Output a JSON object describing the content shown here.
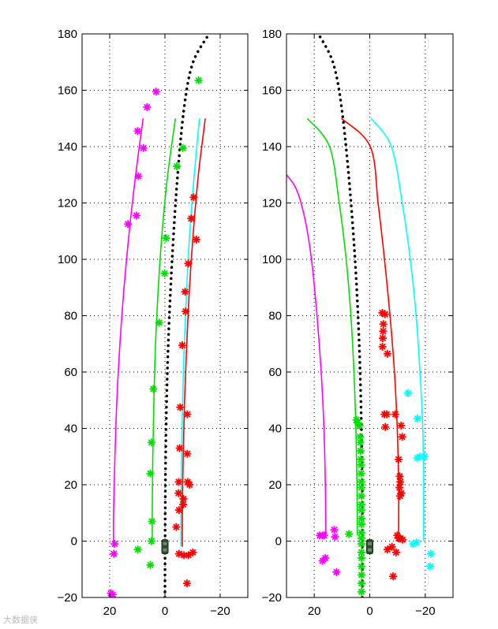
{
  "watermark": "大数据侠",
  "chart_data": [
    {
      "type": "line",
      "title": "",
      "xlabel": "",
      "ylabel": "",
      "xlim": [
        30,
        -30
      ],
      "ylim": [
        -20,
        180
      ],
      "xticks": [
        20,
        0,
        -20
      ],
      "yticks": [
        -20,
        0,
        20,
        40,
        60,
        80,
        100,
        120,
        140,
        160,
        180
      ],
      "xtick_labels": [
        "20",
        "0",
        "−20"
      ],
      "ytick_labels": [
        "−20",
        "0",
        "20",
        "40",
        "60",
        "80",
        "100",
        "120",
        "140",
        "160",
        "180"
      ],
      "grid": true,
      "ego_vehicle": {
        "x": 0,
        "y": -2,
        "color": "#2e4a2e"
      },
      "series": [
        {
          "kind": "line",
          "color": "#ff00ff",
          "points": [
            [
              18.6,
              -2
            ],
            [
              18.6,
              10
            ],
            [
              18.1,
              30
            ],
            [
              17.4,
              50
            ],
            [
              16.3,
              70
            ],
            [
              14.8,
              90
            ],
            [
              12.9,
              110
            ],
            [
              10.6,
              130
            ],
            [
              7.9,
              150
            ]
          ]
        },
        {
          "kind": "line",
          "color": "#00e000",
          "points": [
            [
              4.6,
              -1
            ],
            [
              4.6,
              10
            ],
            [
              4.4,
              30
            ],
            [
              4.0,
              50
            ],
            [
              3.4,
              70
            ],
            [
              2.4,
              90
            ],
            [
              1.0,
              110
            ],
            [
              -1.0,
              130
            ],
            [
              -3.8,
              150
            ]
          ]
        },
        {
          "kind": "line",
          "color": "#00ffff",
          "points": [
            [
              -5.8,
              -2
            ],
            [
              -5.8,
              10
            ],
            [
              -6.0,
              30
            ],
            [
              -6.4,
              50
            ],
            [
              -7.0,
              70
            ],
            [
              -7.9,
              90
            ],
            [
              -9.0,
              110
            ],
            [
              -10.6,
              130
            ],
            [
              -12.5,
              150
            ]
          ]
        },
        {
          "kind": "line",
          "color": "#ff0000",
          "points": [
            [
              -6.3,
              -2
            ],
            [
              -6.3,
              10
            ],
            [
              -6.6,
              30
            ],
            [
              -7.1,
              50
            ],
            [
              -7.9,
              70
            ],
            [
              -8.9,
              90
            ],
            [
              -10.3,
              110
            ],
            [
              -12.1,
              130
            ],
            [
              -14.6,
              150
            ]
          ]
        },
        {
          "kind": "dotted",
          "color": "#000000",
          "points": [
            [
              0,
              -20
            ],
            [
              -0.1,
              10
            ],
            [
              -0.4,
              40
            ],
            [
              -1.2,
              70
            ],
            [
              -2.6,
              100
            ],
            [
              -4.6,
              130
            ],
            [
              -7.1,
              155
            ],
            [
              -10.2,
              170
            ],
            [
              -16,
              180
            ]
          ]
        },
        {
          "kind": "markers",
          "color": "#ff00ff",
          "points": [
            [
              18.9,
              -19
            ],
            [
              19.6,
              -18.5
            ],
            [
              18.5,
              -4.5
            ],
            [
              18.2,
              -1
            ],
            [
              13.4,
              112.5
            ],
            [
              10.3,
              115.5
            ],
            [
              9.6,
              129.5
            ],
            [
              7.8,
              139.5
            ],
            [
              9.9,
              145.5
            ],
            [
              6.5,
              154
            ],
            [
              3.2,
              159.5
            ]
          ]
        },
        {
          "kind": "markers",
          "color": "#00e000",
          "points": [
            [
              -12.2,
              163.5
            ],
            [
              -6.5,
              139.5
            ],
            [
              -4.3,
              133
            ],
            [
              -0.4,
              107.5
            ],
            [
              0.1,
              95
            ],
            [
              2.1,
              77.5
            ],
            [
              4.2,
              54
            ],
            [
              4.9,
              35
            ],
            [
              5.3,
              24
            ],
            [
              4.7,
              7
            ],
            [
              4.9,
              0
            ],
            [
              9.8,
              -3
            ],
            [
              5.3,
              -8.5
            ]
          ]
        },
        {
          "kind": "markers",
          "color": "#ff0000",
          "points": [
            [
              -10.4,
              122
            ],
            [
              -9.5,
              114.5
            ],
            [
              -11.4,
              107
            ],
            [
              -8.4,
              98.5
            ],
            [
              -7.3,
              88.5
            ],
            [
              -7.5,
              81.5
            ],
            [
              -6.3,
              69.5
            ],
            [
              -5.5,
              47.5
            ],
            [
              -8.1,
              45
            ],
            [
              -5.3,
              33
            ],
            [
              -8.1,
              31
            ],
            [
              -8.2,
              21
            ],
            [
              -8.9,
              20
            ],
            [
              -5.0,
              21
            ],
            [
              -4.9,
              17
            ],
            [
              -6.7,
              15
            ],
            [
              -6.6,
              13
            ],
            [
              -5.1,
              11
            ],
            [
              -4.1,
              5
            ],
            [
              -5.1,
              -4.5
            ],
            [
              -6.9,
              -5
            ],
            [
              -8.5,
              -5
            ],
            [
              -10.1,
              -4
            ],
            [
              -8.0,
              -15
            ]
          ]
        }
      ]
    },
    {
      "type": "line",
      "title": "",
      "xlabel": "",
      "ylabel": "",
      "xlim": [
        30,
        -30
      ],
      "ylim": [
        -20,
        180
      ],
      "xticks": [
        20,
        0,
        -20
      ],
      "yticks": [
        -20,
        0,
        20,
        40,
        60,
        80,
        100,
        120,
        140,
        160,
        180
      ],
      "xtick_labels": [
        "20",
        "0",
        "−20"
      ],
      "ytick_labels": [
        "−20",
        "0",
        "20",
        "40",
        "60",
        "80",
        "100",
        "120",
        "140",
        "160",
        "180"
      ],
      "grid": true,
      "ego_vehicle": {
        "x": 0,
        "y": -2,
        "color": "#2e4a2e"
      },
      "series": [
        {
          "kind": "line",
          "color": "#ff00ff",
          "points": [
            [
              15.8,
              2
            ],
            [
              16,
              20
            ],
            [
              16.5,
              40
            ],
            [
              17.5,
              60
            ],
            [
              19,
              80
            ],
            [
              21,
              100
            ],
            [
              23.5,
              115
            ],
            [
              26.5,
              125
            ],
            [
              30,
              130
            ]
          ]
        },
        {
          "kind": "line",
          "color": "#00e000",
          "points": [
            [
              4.5,
              2
            ],
            [
              4.6,
              20
            ],
            [
              5,
              40
            ],
            [
              5.7,
              60
            ],
            [
              6.8,
              80
            ],
            [
              8.5,
              100
            ],
            [
              11,
              120
            ],
            [
              14.5,
              140
            ],
            [
              22.5,
              150
            ]
          ]
        },
        {
          "kind": "line",
          "color": "#ff0000",
          "points": [
            [
              -10.4,
              2
            ],
            [
              -10.4,
              20
            ],
            [
              -9.9,
              40
            ],
            [
              -8.9,
              60
            ],
            [
              -7.3,
              80
            ],
            [
              -5.3,
              100
            ],
            [
              -3.0,
              120
            ],
            [
              -0.2,
              140
            ],
            [
              10.2,
              150
            ]
          ]
        },
        {
          "kind": "line",
          "color": "#00ffff",
          "points": [
            [
              -19.4,
              0
            ],
            [
              -19.4,
              20
            ],
            [
              -19.1,
              40
            ],
            [
              -18.1,
              60
            ],
            [
              -16.7,
              80
            ],
            [
              -14.6,
              100
            ],
            [
              -11.7,
              120
            ],
            [
              -7.8,
              140
            ],
            [
              -0.5,
              150
            ]
          ]
        },
        {
          "kind": "dotted",
          "color": "#000000",
          "points": [
            [
              2.7,
              -20
            ],
            [
              2.7,
              10
            ],
            [
              3.0,
              40
            ],
            [
              3.8,
              70
            ],
            [
              5.3,
              100
            ],
            [
              7.6,
              130
            ],
            [
              10.3,
              155
            ],
            [
              13.3,
              170
            ],
            [
              18.5,
              180
            ]
          ]
        },
        {
          "kind": "markers",
          "color": "#ff00ff",
          "points": [
            [
              18.0,
              2
            ],
            [
              17.0,
              2
            ],
            [
              16.4,
              2
            ],
            [
              12.8,
              4
            ],
            [
              12.5,
              1.5
            ],
            [
              16.0,
              -6
            ],
            [
              17.0,
              -7
            ],
            [
              12.0,
              -11
            ]
          ]
        },
        {
          "kind": "markers",
          "color": "#00e000",
          "points": [
            [
              4.8,
              43
            ],
            [
              4.4,
              42
            ],
            [
              3.7,
              41
            ],
            [
              3.5,
              37
            ],
            [
              3.4,
              35
            ],
            [
              3.3,
              32
            ],
            [
              3.2,
              29
            ],
            [
              3.1,
              27
            ],
            [
              3.1,
              24
            ],
            [
              3.0,
              21
            ],
            [
              3.0,
              19
            ],
            [
              3.0,
              16
            ],
            [
              3.0,
              13
            ],
            [
              3.0,
              11
            ],
            [
              3.0,
              8
            ],
            [
              3.0,
              6
            ],
            [
              3.0,
              3
            ],
            [
              3.0,
              1
            ],
            [
              3.0,
              -1
            ],
            [
              3.0,
              -4
            ],
            [
              3.0,
              -6
            ],
            [
              3.0,
              -9
            ],
            [
              3.0,
              -12
            ],
            [
              3.0,
              -15
            ],
            [
              3.0,
              -18
            ],
            [
              7.5,
              2.5
            ]
          ]
        },
        {
          "kind": "markers",
          "color": "#ff0000",
          "points": [
            [
              -4.5,
              81
            ],
            [
              -5.5,
              80.5
            ],
            [
              -4.9,
              77
            ],
            [
              -4.8,
              74.5
            ],
            [
              -4.7,
              72
            ],
            [
              -4.6,
              69
            ],
            [
              -6.4,
              66.5
            ],
            [
              -5.3,
              45
            ],
            [
              -6.1,
              45
            ],
            [
              -5.6,
              40.5
            ],
            [
              -9.2,
              45
            ],
            [
              -11.3,
              41
            ],
            [
              -11.7,
              37
            ],
            [
              -10.4,
              29
            ],
            [
              -10.8,
              23
            ],
            [
              -11.0,
              21
            ],
            [
              -10.7,
              19
            ],
            [
              -11.4,
              17
            ],
            [
              -10.9,
              16
            ],
            [
              -9.9,
              2
            ],
            [
              -10.4,
              1
            ],
            [
              -11.0,
              1
            ],
            [
              -11.8,
              0.5
            ],
            [
              -8.0,
              -2
            ],
            [
              -6.4,
              -3
            ],
            [
              -9.5,
              -4
            ],
            [
              -8.4,
              -12.5
            ]
          ]
        },
        {
          "kind": "markers",
          "color": "#00ffff",
          "points": [
            [
              -13.8,
              52.5
            ],
            [
              -17.2,
              43.5
            ],
            [
              -17.1,
              29.5
            ],
            [
              -18.0,
              30
            ],
            [
              -19.7,
              30
            ],
            [
              -16.8,
              -0.5
            ],
            [
              -15.6,
              -1
            ],
            [
              -22.0,
              -4.5
            ],
            [
              -21.8,
              -9
            ]
          ]
        }
      ]
    }
  ]
}
